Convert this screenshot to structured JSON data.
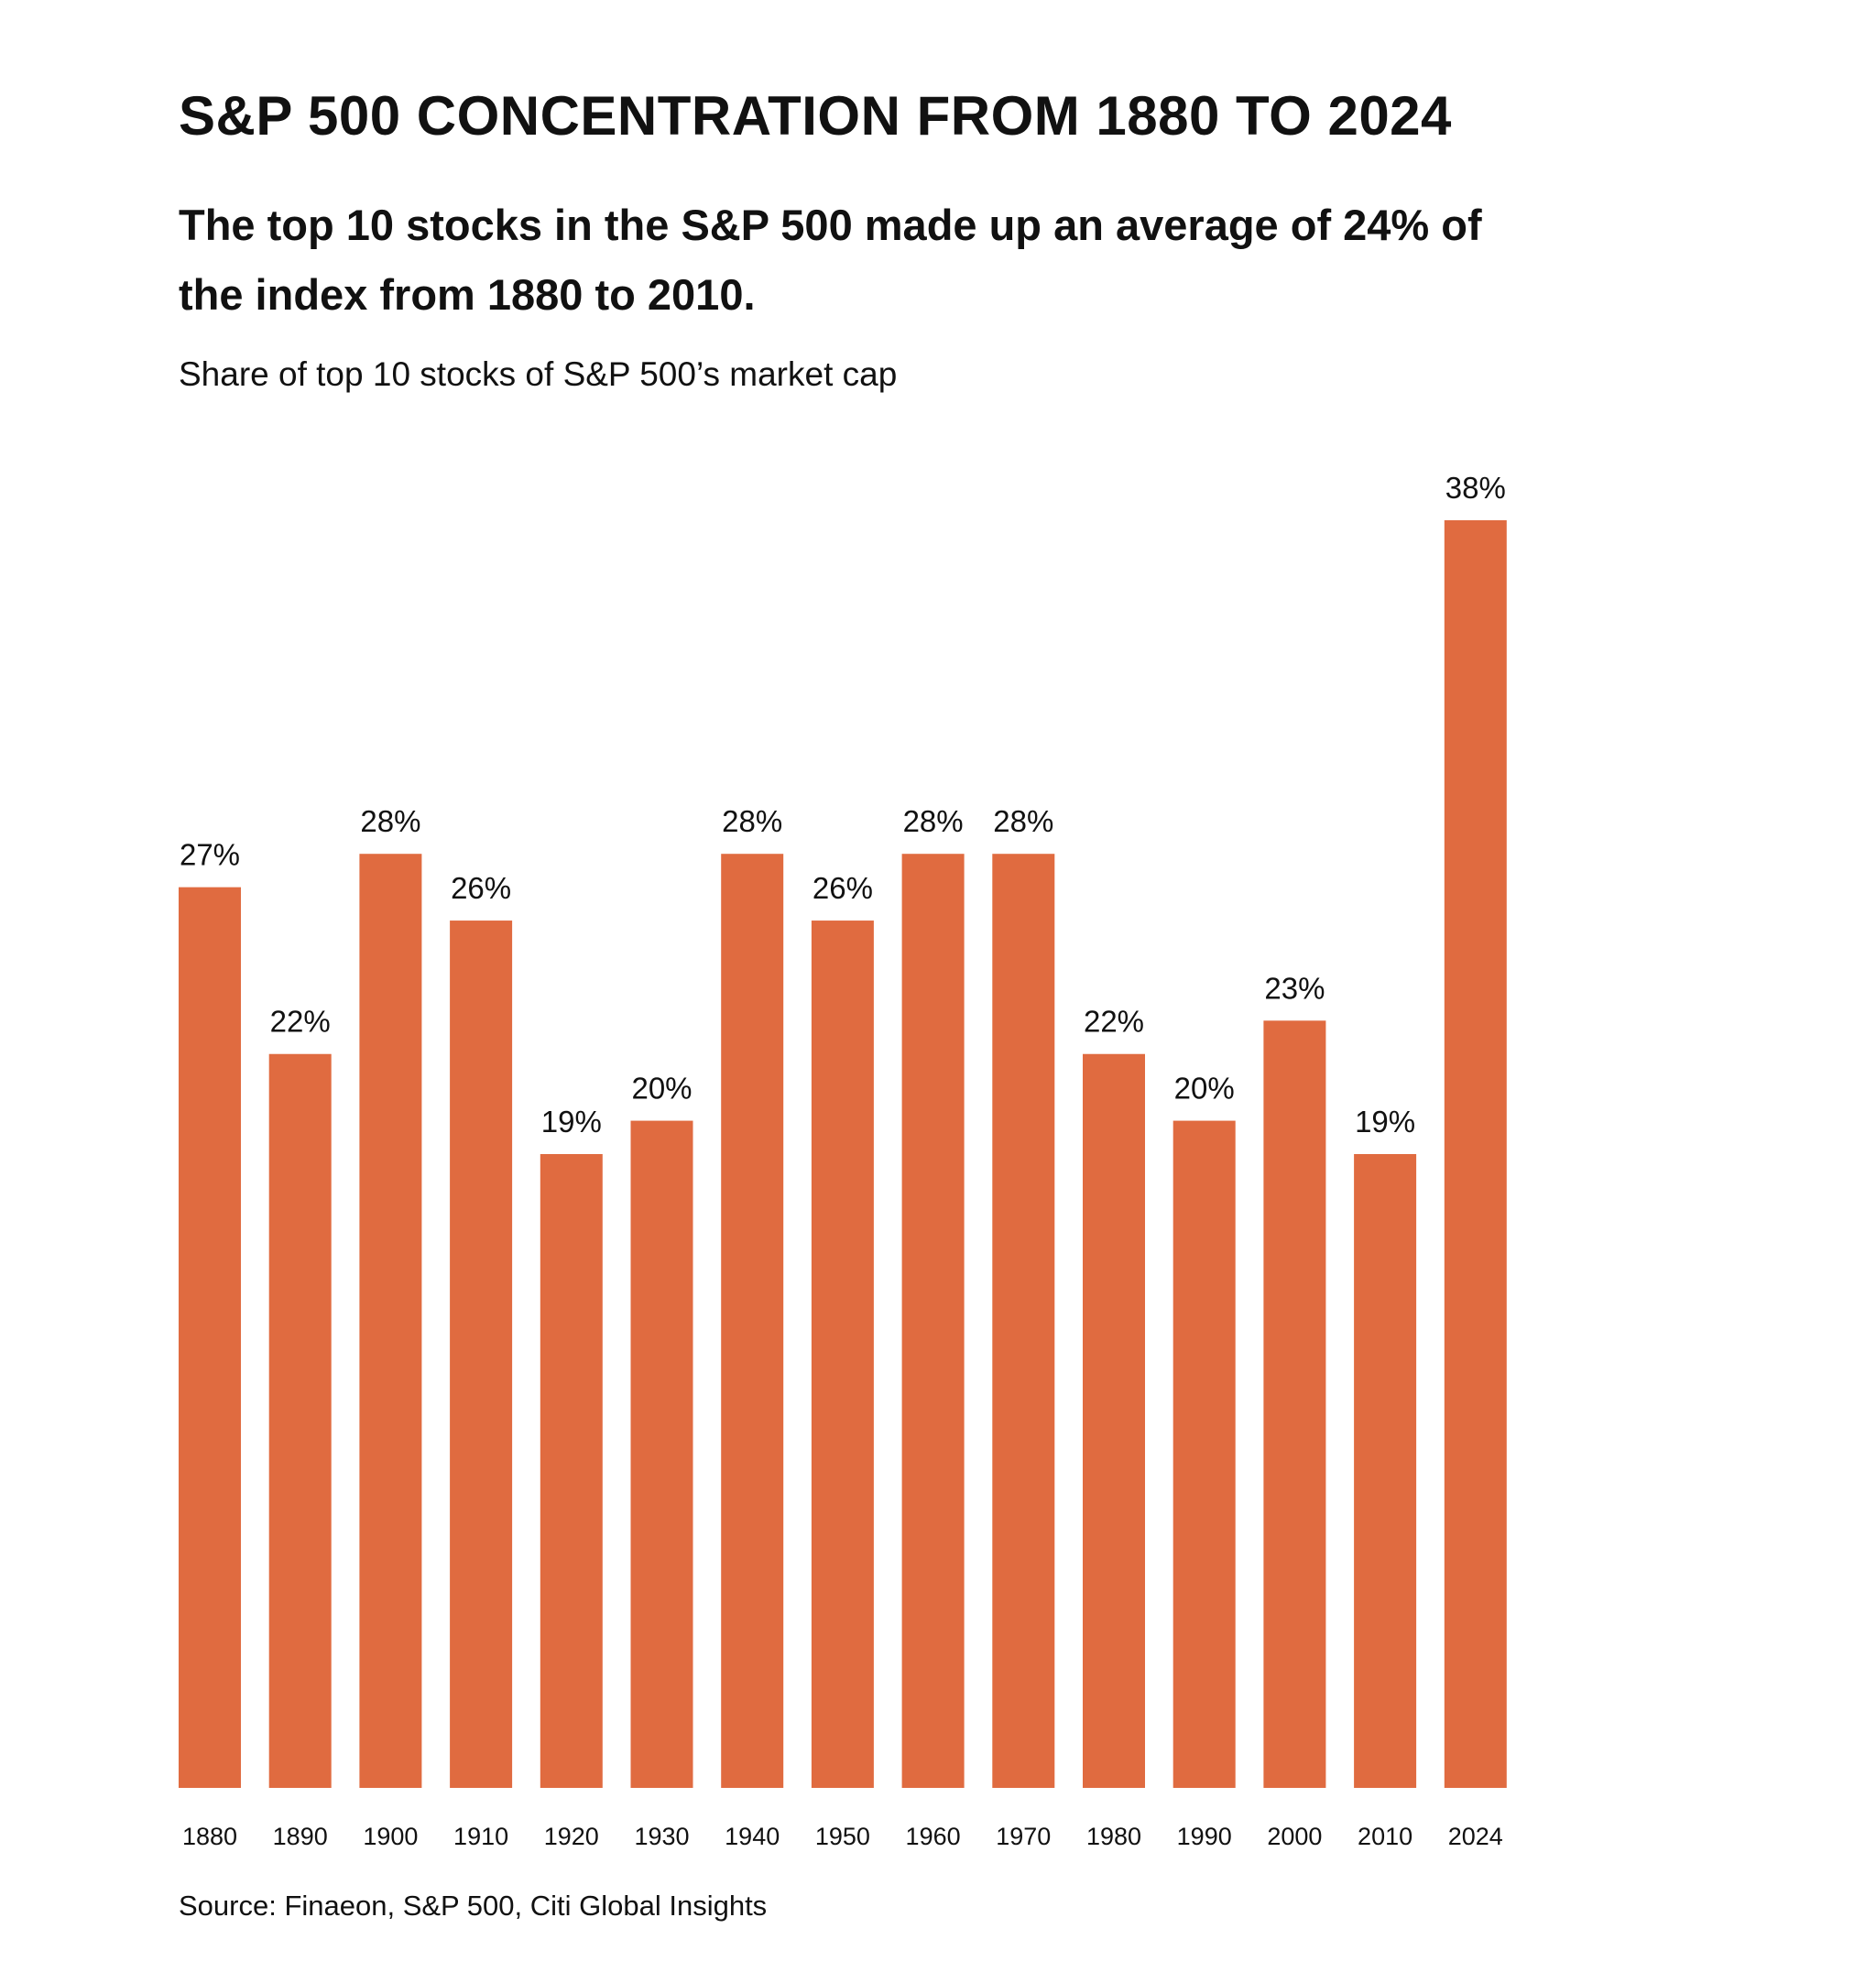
{
  "colors": {
    "bar": "#E06B40",
    "text": "#111111",
    "background": "#FFFFFF"
  },
  "chart_data": {
    "type": "bar",
    "title": "S&P 500 CONCENTRATION FROM 1880 TO 2024",
    "subtitle": "The top 10 stocks in the S&P 500 made up an average of 24% of the index from 1880 to 2010.",
    "caption": "Share of top 10 stocks of S&P 500’s market cap",
    "categories": [
      "1880",
      "1890",
      "1900",
      "1910",
      "1920",
      "1930",
      "1940",
      "1950",
      "1960",
      "1970",
      "1980",
      "1990",
      "2000",
      "2010",
      "2024"
    ],
    "values": [
      27,
      22,
      28,
      26,
      19,
      20,
      28,
      26,
      28,
      28,
      22,
      20,
      23,
      19,
      38
    ],
    "value_labels": [
      "27%",
      "22%",
      "28%",
      "26%",
      "19%",
      "20%",
      "28%",
      "26%",
      "28%",
      "28%",
      "22%",
      "20%",
      "23%",
      "19%",
      "38%"
    ],
    "xlabel": "",
    "ylabel": "",
    "ylim": [
      0,
      38
    ],
    "grid": false,
    "source": "Source: Finaeon, S&P 500, Citi Global Insights"
  }
}
